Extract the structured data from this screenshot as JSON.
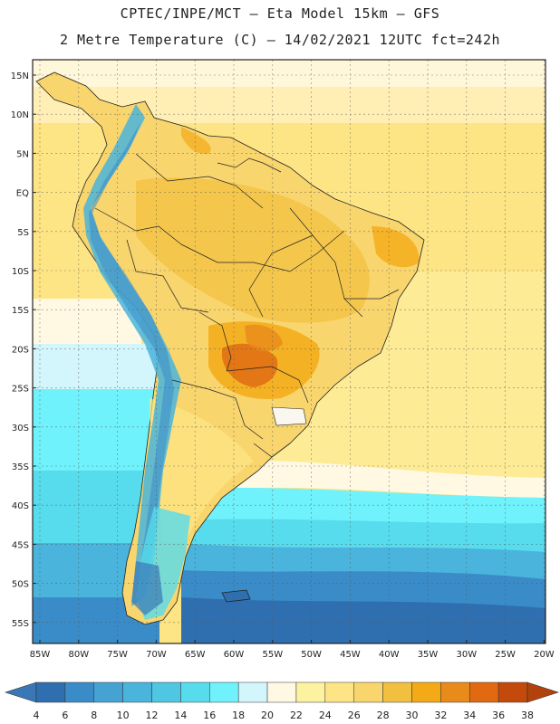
{
  "header": {
    "line1": "CPTEC/INPE/MCT –  Eta Model 15km – GFS",
    "line2": "2 Metre Temperature (C) – 14/02/2021 12UTC fct=242h"
  },
  "map": {
    "lat_labels": [
      "15N",
      "10N",
      "5N",
      "EQ",
      "5S",
      "10S",
      "15S",
      "20S",
      "25S",
      "30S",
      "35S",
      "40S",
      "45S",
      "50S",
      "55S"
    ],
    "lon_labels": [
      "85W",
      "80W",
      "75W",
      "70W",
      "65W",
      "60W",
      "55W",
      "50W",
      "45W",
      "40W",
      "35W",
      "30W",
      "25W",
      "20W"
    ],
    "gridlines": true,
    "colorbar": {
      "ticks": [
        "4",
        "6",
        "8",
        "10",
        "12",
        "14",
        "16",
        "18",
        "20",
        "22",
        "24",
        "26",
        "28",
        "30",
        "32",
        "34",
        "36",
        "38"
      ],
      "colors": [
        "#3a78b5",
        "#2f6fb0",
        "#3a8cc8",
        "#45a3d3",
        "#4ab4dc",
        "#4fc6e2",
        "#56dcec",
        "#6ff2fb",
        "#d2f6fb",
        "#fff9e4",
        "#fdf2a0",
        "#fde585",
        "#f9d56e",
        "#f1c040",
        "#f4aa17",
        "#e88b1a",
        "#e06911",
        "#c44a0c",
        "#b3410c"
      ]
    }
  }
}
